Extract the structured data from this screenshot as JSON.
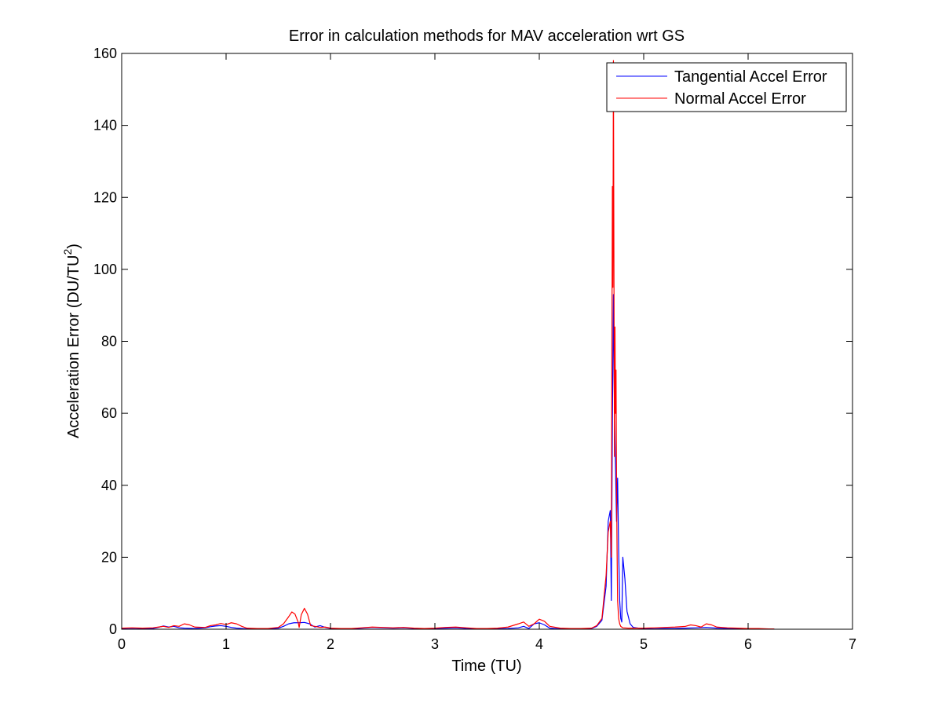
{
  "chart_data": {
    "type": "line",
    "title": "Error in calculation methods for MAV acceleration wrt GS",
    "xlabel": "Time (TU)",
    "ylabel": {
      "prefix": "Acceleration Error (DU/TU",
      "superscript": "2",
      "suffix": ")"
    },
    "xlim": [
      0,
      7
    ],
    "ylim": [
      0,
      160
    ],
    "xticks": [
      0,
      1,
      2,
      3,
      4,
      5,
      6,
      7
    ],
    "yticks": [
      0,
      20,
      40,
      60,
      80,
      100,
      120,
      140,
      160
    ],
    "grid": false,
    "legend_position": "top-right",
    "series": [
      {
        "name": "Tangential Accel Error",
        "color": "#0000ff",
        "x": [
          0,
          0.1,
          0.2,
          0.3,
          0.35,
          0.4,
          0.45,
          0.5,
          0.55,
          0.6,
          0.7,
          0.8,
          0.85,
          0.9,
          0.95,
          1.0,
          1.05,
          1.1,
          1.15,
          1.2,
          1.3,
          1.4,
          1.5,
          1.55,
          1.6,
          1.65,
          1.7,
          1.75,
          1.8,
          1.85,
          1.9,
          1.95,
          2.0,
          2.1,
          2.2,
          2.3,
          2.4,
          2.5,
          2.6,
          2.7,
          2.8,
          2.9,
          3.0,
          3.1,
          3.2,
          3.3,
          3.4,
          3.5,
          3.6,
          3.7,
          3.8,
          3.85,
          3.9,
          3.95,
          4.0,
          4.05,
          4.1,
          4.2,
          4.3,
          4.4,
          4.5,
          4.55,
          4.6,
          4.64,
          4.66,
          4.68,
          4.69,
          4.7,
          4.71,
          4.72,
          4.73,
          4.74,
          4.75,
          4.76,
          4.77,
          4.78,
          4.79,
          4.8,
          4.82,
          4.84,
          4.87,
          4.9,
          4.95,
          5.0,
          5.1,
          5.2,
          5.3,
          5.4,
          5.5,
          5.6,
          5.7,
          5.8,
          5.9,
          6.0,
          6.1,
          6.2,
          6.25
        ],
        "y": [
          0.2,
          0.3,
          0.2,
          0.2,
          0.5,
          0.9,
          0.6,
          0.8,
          0.4,
          0.3,
          0.2,
          0.4,
          0.7,
          0.9,
          1.0,
          0.8,
          0.5,
          0.3,
          0.2,
          0.1,
          0.1,
          0.1,
          0.3,
          0.8,
          1.5,
          1.8,
          1.8,
          1.9,
          1.5,
          0.6,
          1.0,
          0.5,
          0.2,
          0.1,
          0.1,
          0.3,
          0.5,
          0.4,
          0.3,
          0.4,
          0.2,
          0.1,
          0.2,
          0.3,
          0.4,
          0.2,
          0.1,
          0.1,
          0.1,
          0.2,
          0.4,
          0.8,
          0.2,
          1.5,
          1.8,
          1.2,
          0.3,
          0.1,
          0.1,
          0.1,
          0.2,
          0.8,
          2.5,
          12,
          30,
          33,
          8,
          57,
          93,
          60,
          45,
          30,
          42,
          22,
          8,
          3,
          2,
          20,
          14,
          5,
          1.5,
          0.5,
          0.3,
          0.2,
          0.1,
          0.2,
          0.2,
          0.3,
          0.4,
          0.5,
          0.3,
          0.2,
          0.1,
          0.1,
          0.1,
          0.1,
          0.1
        ]
      },
      {
        "name": "Normal Accel Error",
        "color": "#ff0000",
        "x": [
          0,
          0.1,
          0.2,
          0.3,
          0.35,
          0.4,
          0.45,
          0.5,
          0.55,
          0.6,
          0.65,
          0.7,
          0.8,
          0.85,
          0.9,
          0.95,
          1.0,
          1.05,
          1.1,
          1.15,
          1.2,
          1.3,
          1.4,
          1.5,
          1.55,
          1.6,
          1.63,
          1.66,
          1.69,
          1.7,
          1.72,
          1.75,
          1.78,
          1.81,
          1.85,
          1.9,
          1.95,
          2.0,
          2.1,
          2.2,
          2.3,
          2.4,
          2.5,
          2.6,
          2.7,
          2.8,
          2.9,
          3.0,
          3.1,
          3.2,
          3.3,
          3.4,
          3.5,
          3.6,
          3.7,
          3.8,
          3.85,
          3.9,
          3.95,
          4.0,
          4.05,
          4.1,
          4.2,
          4.3,
          4.4,
          4.5,
          4.55,
          4.6,
          4.64,
          4.66,
          4.68,
          4.69,
          4.7,
          4.705,
          4.71,
          4.715,
          4.72,
          4.725,
          4.73,
          4.735,
          4.74,
          4.745,
          4.75,
          4.76,
          4.77,
          4.78,
          4.8,
          4.85,
          4.9,
          5.0,
          5.1,
          5.2,
          5.3,
          5.4,
          5.45,
          5.5,
          5.55,
          5.6,
          5.65,
          5.7,
          5.8,
          5.9,
          6.0,
          6.1,
          6.2,
          6.25
        ],
        "y": [
          0.3,
          0.4,
          0.3,
          0.4,
          0.6,
          0.8,
          0.5,
          1.0,
          0.8,
          1.5,
          1.2,
          0.6,
          0.5,
          1.0,
          1.2,
          1.6,
          1.3,
          1.8,
          1.5,
          0.8,
          0.3,
          0.2,
          0.2,
          0.5,
          1.5,
          3.5,
          4.8,
          4.2,
          2.0,
          0.5,
          4.0,
          5.8,
          4.2,
          1.0,
          0.8,
          0.5,
          0.6,
          0.3,
          0.2,
          0.2,
          0.4,
          0.6,
          0.5,
          0.4,
          0.5,
          0.3,
          0.2,
          0.3,
          0.5,
          0.6,
          0.4,
          0.2,
          0.2,
          0.3,
          0.6,
          1.5,
          2.0,
          0.8,
          1.5,
          2.8,
          2.2,
          0.8,
          0.3,
          0.2,
          0.2,
          0.3,
          1.0,
          3.0,
          15,
          27,
          30,
          20,
          123,
          95,
          158,
          100,
          48,
          84,
          60,
          72,
          40,
          22,
          8,
          3,
          1.5,
          0.8,
          0.4,
          0.3,
          0.3,
          0.3,
          0.4,
          0.5,
          0.6,
          0.8,
          1.2,
          1.0,
          0.6,
          1.5,
          1.2,
          0.6,
          0.4,
          0.3,
          0.2,
          0.2,
          0.1,
          0.1
        ]
      }
    ]
  }
}
